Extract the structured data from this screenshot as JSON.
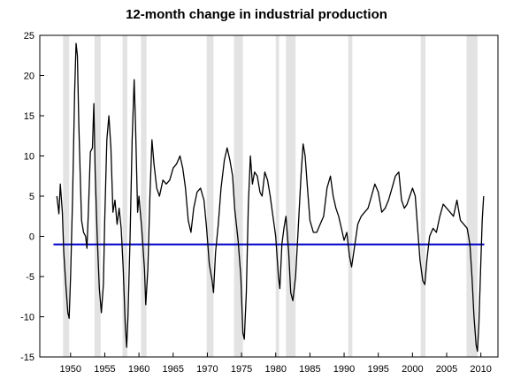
{
  "chart_data": {
    "type": "line",
    "title": "12-month change in industrial production",
    "xlabel": "",
    "ylabel": "",
    "xlim": [
      1945.5,
      2012.5
    ],
    "ylim": [
      -15,
      25
    ],
    "grid": false,
    "legend": "none",
    "x_ticks": [
      1950,
      1955,
      1960,
      1965,
      1970,
      1975,
      1980,
      1985,
      1990,
      1995,
      2000,
      2005,
      2010
    ],
    "x_tick_labels": [
      "1950",
      "1955",
      "1960",
      "1965",
      "1970",
      "1975",
      "1980",
      "1985",
      "1990",
      "1995",
      "2000",
      "2005",
      "2010"
    ],
    "y_ticks": [
      -15,
      -10,
      -5,
      0,
      5,
      10,
      15,
      20,
      25
    ],
    "y_tick_labels": [
      "-15",
      "-10",
      "-5",
      "0",
      "5",
      "10",
      "15",
      "20",
      "25"
    ],
    "recessions": [
      {
        "start": 1948.9,
        "end": 1949.8
      },
      {
        "start": 1953.5,
        "end": 1954.4
      },
      {
        "start": 1957.6,
        "end": 1958.3
      },
      {
        "start": 1960.3,
        "end": 1961.1
      },
      {
        "start": 1969.9,
        "end": 1970.9
      },
      {
        "start": 1973.9,
        "end": 1975.2
      },
      {
        "start": 1980.0,
        "end": 1980.5
      },
      {
        "start": 1981.5,
        "end": 1982.9
      },
      {
        "start": 1990.6,
        "end": 1991.2
      },
      {
        "start": 2001.2,
        "end": 2001.9
      },
      {
        "start": 2007.9,
        "end": 2009.5
      }
    ],
    "series": [
      {
        "values": [
          {
            "x": 1948.0,
            "y": 5.0
          },
          {
            "x": 1948.3,
            "y": 2.8
          },
          {
            "x": 1948.5,
            "y": 6.5
          },
          {
            "x": 1948.8,
            "y": 3.0
          },
          {
            "x": 1949.0,
            "y": -2.0
          },
          {
            "x": 1949.3,
            "y": -6.0
          },
          {
            "x": 1949.6,
            "y": -9.5
          },
          {
            "x": 1949.8,
            "y": -10.2
          },
          {
            "x": 1950.0,
            "y": -5.0
          },
          {
            "x": 1950.3,
            "y": 5.0
          },
          {
            "x": 1950.6,
            "y": 18.0
          },
          {
            "x": 1950.8,
            "y": 24.0
          },
          {
            "x": 1951.0,
            "y": 22.5
          },
          {
            "x": 1951.2,
            "y": 14.0
          },
          {
            "x": 1951.4,
            "y": 8.0
          },
          {
            "x": 1951.6,
            "y": 2.0
          },
          {
            "x": 1951.9,
            "y": 0.5
          },
          {
            "x": 1952.2,
            "y": 0.0
          },
          {
            "x": 1952.4,
            "y": -1.5
          },
          {
            "x": 1952.6,
            "y": 3.0
          },
          {
            "x": 1952.9,
            "y": 10.5
          },
          {
            "x": 1953.2,
            "y": 11.0
          },
          {
            "x": 1953.4,
            "y": 16.5
          },
          {
            "x": 1953.6,
            "y": 8.0
          },
          {
            "x": 1953.9,
            "y": 0.0
          },
          {
            "x": 1954.2,
            "y": -6.5
          },
          {
            "x": 1954.5,
            "y": -9.5
          },
          {
            "x": 1954.8,
            "y": -6.0
          },
          {
            "x": 1955.0,
            "y": 2.0
          },
          {
            "x": 1955.3,
            "y": 12.0
          },
          {
            "x": 1955.6,
            "y": 15.0
          },
          {
            "x": 1955.9,
            "y": 11.0
          },
          {
            "x": 1956.2,
            "y": 3.0
          },
          {
            "x": 1956.5,
            "y": 4.5
          },
          {
            "x": 1956.8,
            "y": 1.5
          },
          {
            "x": 1957.1,
            "y": 3.5
          },
          {
            "x": 1957.4,
            "y": 1.0
          },
          {
            "x": 1957.7,
            "y": -4.0
          },
          {
            "x": 1958.0,
            "y": -11.0
          },
          {
            "x": 1958.2,
            "y": -13.8
          },
          {
            "x": 1958.4,
            "y": -10.0
          },
          {
            "x": 1958.7,
            "y": 0.0
          },
          {
            "x": 1959.0,
            "y": 12.0
          },
          {
            "x": 1959.3,
            "y": 19.5
          },
          {
            "x": 1959.5,
            "y": 14.0
          },
          {
            "x": 1959.8,
            "y": 3.0
          },
          {
            "x": 1960.0,
            "y": 5.0
          },
          {
            "x": 1960.4,
            "y": 1.0
          },
          {
            "x": 1960.8,
            "y": -4.0
          },
          {
            "x": 1961.0,
            "y": -8.5
          },
          {
            "x": 1961.3,
            "y": -4.0
          },
          {
            "x": 1961.6,
            "y": 5.0
          },
          {
            "x": 1961.9,
            "y": 12.0
          },
          {
            "x": 1962.2,
            "y": 9.0
          },
          {
            "x": 1962.6,
            "y": 6.0
          },
          {
            "x": 1963.0,
            "y": 5.0
          },
          {
            "x": 1963.5,
            "y": 7.0
          },
          {
            "x": 1964.0,
            "y": 6.5
          },
          {
            "x": 1964.5,
            "y": 7.0
          },
          {
            "x": 1965.0,
            "y": 8.5
          },
          {
            "x": 1965.5,
            "y": 9.0
          },
          {
            "x": 1966.0,
            "y": 10.0
          },
          {
            "x": 1966.4,
            "y": 8.5
          },
          {
            "x": 1966.8,
            "y": 6.0
          },
          {
            "x": 1967.2,
            "y": 2.0
          },
          {
            "x": 1967.6,
            "y": 0.5
          },
          {
            "x": 1968.0,
            "y": 3.5
          },
          {
            "x": 1968.5,
            "y": 5.5
          },
          {
            "x": 1969.0,
            "y": 6.0
          },
          {
            "x": 1969.5,
            "y": 4.5
          },
          {
            "x": 1969.9,
            "y": 1.0
          },
          {
            "x": 1970.3,
            "y": -3.5
          },
          {
            "x": 1970.7,
            "y": -5.5
          },
          {
            "x": 1970.9,
            "y": -7.0
          },
          {
            "x": 1971.2,
            "y": -2.0
          },
          {
            "x": 1971.6,
            "y": 1.5
          },
          {
            "x": 1972.0,
            "y": 6.0
          },
          {
            "x": 1972.5,
            "y": 9.5
          },
          {
            "x": 1972.9,
            "y": 11.0
          },
          {
            "x": 1973.3,
            "y": 9.5
          },
          {
            "x": 1973.7,
            "y": 7.5
          },
          {
            "x": 1974.0,
            "y": 3.5
          },
          {
            "x": 1974.5,
            "y": -0.5
          },
          {
            "x": 1974.9,
            "y": -5.0
          },
          {
            "x": 1975.2,
            "y": -12.0
          },
          {
            "x": 1975.4,
            "y": -12.8
          },
          {
            "x": 1975.7,
            "y": -7.0
          },
          {
            "x": 1976.0,
            "y": 4.0
          },
          {
            "x": 1976.3,
            "y": 10.0
          },
          {
            "x": 1976.6,
            "y": 6.5
          },
          {
            "x": 1976.9,
            "y": 8.0
          },
          {
            "x": 1977.3,
            "y": 7.5
          },
          {
            "x": 1977.7,
            "y": 5.5
          },
          {
            "x": 1978.0,
            "y": 5.0
          },
          {
            "x": 1978.4,
            "y": 8.0
          },
          {
            "x": 1978.8,
            "y": 7.0
          },
          {
            "x": 1979.2,
            "y": 5.0
          },
          {
            "x": 1979.6,
            "y": 2.5
          },
          {
            "x": 1980.0,
            "y": 0.0
          },
          {
            "x": 1980.4,
            "y": -5.0
          },
          {
            "x": 1980.6,
            "y": -6.5
          },
          {
            "x": 1980.9,
            "y": -1.0
          },
          {
            "x": 1981.2,
            "y": 1.0
          },
          {
            "x": 1981.5,
            "y": 2.5
          },
          {
            "x": 1981.9,
            "y": -2.0
          },
          {
            "x": 1982.2,
            "y": -7.0
          },
          {
            "x": 1982.5,
            "y": -8.0
          },
          {
            "x": 1982.9,
            "y": -5.0
          },
          {
            "x": 1983.3,
            "y": 1.0
          },
          {
            "x": 1983.7,
            "y": 7.5
          },
          {
            "x": 1984.0,
            "y": 11.5
          },
          {
            "x": 1984.3,
            "y": 10.0
          },
          {
            "x": 1984.6,
            "y": 6.5
          },
          {
            "x": 1985.0,
            "y": 2.0
          },
          {
            "x": 1985.5,
            "y": 0.5
          },
          {
            "x": 1986.0,
            "y": 0.5
          },
          {
            "x": 1986.5,
            "y": 1.5
          },
          {
            "x": 1987.0,
            "y": 2.5
          },
          {
            "x": 1987.5,
            "y": 6.0
          },
          {
            "x": 1988.0,
            "y": 7.5
          },
          {
            "x": 1988.4,
            "y": 5.0
          },
          {
            "x": 1988.8,
            "y": 3.5
          },
          {
            "x": 1989.2,
            "y": 2.5
          },
          {
            "x": 1989.6,
            "y": 1.0
          },
          {
            "x": 1990.0,
            "y": -0.5
          },
          {
            "x": 1990.4,
            "y": 0.5
          },
          {
            "x": 1990.8,
            "y": -2.5
          },
          {
            "x": 1991.1,
            "y": -3.8
          },
          {
            "x": 1991.5,
            "y": -1.5
          },
          {
            "x": 1992.0,
            "y": 1.5
          },
          {
            "x": 1992.5,
            "y": 2.5
          },
          {
            "x": 1993.0,
            "y": 3.0
          },
          {
            "x": 1993.5,
            "y": 3.5
          },
          {
            "x": 1994.0,
            "y": 5.0
          },
          {
            "x": 1994.5,
            "y": 6.5
          },
          {
            "x": 1995.0,
            "y": 5.5
          },
          {
            "x": 1995.5,
            "y": 3.0
          },
          {
            "x": 1996.0,
            "y": 3.5
          },
          {
            "x": 1996.5,
            "y": 4.5
          },
          {
            "x": 1997.0,
            "y": 6.0
          },
          {
            "x": 1997.5,
            "y": 7.5
          },
          {
            "x": 1998.0,
            "y": 8.0
          },
          {
            "x": 1998.4,
            "y": 4.5
          },
          {
            "x": 1998.8,
            "y": 3.5
          },
          {
            "x": 1999.2,
            "y": 4.0
          },
          {
            "x": 1999.6,
            "y": 5.0
          },
          {
            "x": 2000.0,
            "y": 6.0
          },
          {
            "x": 2000.4,
            "y": 5.0
          },
          {
            "x": 2000.8,
            "y": 0.5
          },
          {
            "x": 2001.1,
            "y": -3.0
          },
          {
            "x": 2001.5,
            "y": -5.5
          },
          {
            "x": 2001.8,
            "y": -6.0
          },
          {
            "x": 2002.1,
            "y": -3.0
          },
          {
            "x": 2002.5,
            "y": 0.0
          },
          {
            "x": 2003.0,
            "y": 1.0
          },
          {
            "x": 2003.5,
            "y": 0.5
          },
          {
            "x": 2004.0,
            "y": 2.5
          },
          {
            "x": 2004.5,
            "y": 4.0
          },
          {
            "x": 2005.0,
            "y": 3.5
          },
          {
            "x": 2005.5,
            "y": 3.0
          },
          {
            "x": 2006.0,
            "y": 2.5
          },
          {
            "x": 2006.5,
            "y": 4.5
          },
          {
            "x": 2007.0,
            "y": 2.0
          },
          {
            "x": 2007.5,
            "y": 1.5
          },
          {
            "x": 2008.0,
            "y": 1.0
          },
          {
            "x": 2008.4,
            "y": -1.0
          },
          {
            "x": 2008.7,
            "y": -5.0
          },
          {
            "x": 2009.0,
            "y": -10.0
          },
          {
            "x": 2009.3,
            "y": -13.5
          },
          {
            "x": 2009.5,
            "y": -14.3
          },
          {
            "x": 2009.7,
            "y": -11.0
          },
          {
            "x": 2010.0,
            "y": -3.0
          },
          {
            "x": 2010.2,
            "y": 2.0
          },
          {
            "x": 2010.4,
            "y": 5.0
          }
        ]
      },
      {
        "values": [
          {
            "x": 1947.5,
            "y": -1.0
          },
          {
            "x": 2010.5,
            "y": -1.0
          }
        ]
      }
    ],
    "colors": {
      "main_line": "#000000",
      "reference_line": "#0000cc",
      "recession_shading": "#e3e3e3"
    }
  }
}
